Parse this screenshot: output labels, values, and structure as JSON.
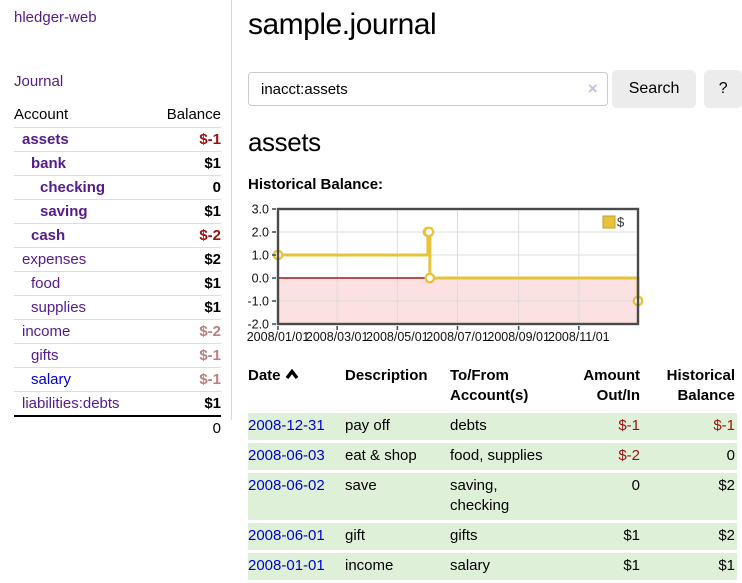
{
  "colors": {
    "link_purple": "#551a8b",
    "link_blue": "#0000cc",
    "negative_red": "#991111",
    "negative_muted": "#c07f7f",
    "row_green": "#dff0d8",
    "chart_gold": "#e7c33c",
    "chart_gold_border": "#bfa02a",
    "chart_negative_fill": "#fbe1e1",
    "chart_zero_line": "#a01c1c",
    "chart_border": "#4a4a4a",
    "grid_line": "#dcdcdc"
  },
  "sidebar": {
    "app_title": "hledger-web",
    "journal_link": "Journal",
    "accounts_table": {
      "headers": {
        "account": "Account",
        "balance": "Balance"
      },
      "rows": [
        {
          "account": "assets",
          "balance": "$-1",
          "depth": 1,
          "bold": true,
          "negative": "strong",
          "link_color": "purple"
        },
        {
          "account": "bank",
          "balance": "$1",
          "depth": 2,
          "bold": true,
          "negative": "none",
          "link_color": "purple"
        },
        {
          "account": "checking",
          "balance": "0",
          "depth": 3,
          "bold": true,
          "negative": "none",
          "link_color": "purple"
        },
        {
          "account": "saving",
          "balance": "$1",
          "depth": 3,
          "bold": true,
          "negative": "none",
          "link_color": "purple"
        },
        {
          "account": "cash",
          "balance": "$-2",
          "depth": 2,
          "bold": true,
          "negative": "strong",
          "link_color": "purple"
        },
        {
          "account": "expenses",
          "balance": "$2",
          "depth": 1,
          "bold": false,
          "negative": "none",
          "link_color": "purple"
        },
        {
          "account": "food",
          "balance": "$1",
          "depth": 2,
          "bold": false,
          "negative": "none",
          "link_color": "purple"
        },
        {
          "account": "supplies",
          "balance": "$1",
          "depth": 2,
          "bold": false,
          "negative": "none",
          "link_color": "purple"
        },
        {
          "account": "income",
          "balance": "$-2",
          "depth": 1,
          "bold": false,
          "negative": "muted",
          "link_color": "purple"
        },
        {
          "account": "gifts",
          "balance": "$-1",
          "depth": 2,
          "bold": false,
          "negative": "muted",
          "link_color": "purple"
        },
        {
          "account": "salary",
          "balance": "$-1",
          "depth": 2,
          "bold": false,
          "negative": "muted",
          "link_color": "blue"
        },
        {
          "account": "liabilities:debts",
          "balance": "$1",
          "depth": 1,
          "bold": false,
          "negative": "none",
          "link_color": "purple"
        }
      ],
      "total": "0"
    }
  },
  "main": {
    "title": "sample.journal",
    "search": {
      "value": "inacct:assets",
      "clear_icon": "×",
      "search_button": "Search",
      "help_button": "?"
    },
    "account_heading": "assets",
    "section_heading": "Historical Balance:",
    "transactions": {
      "headers": [
        "Date",
        "Description",
        "To/From Account(s)",
        "Amount Out/In",
        "Historical Balance"
      ],
      "sort": {
        "column": "Date",
        "direction": "ascending"
      },
      "rows": [
        {
          "date": "2008-12-31",
          "description": "pay off",
          "accounts": "debts",
          "amount": "$-1",
          "balance": "$-1",
          "amount_negative": true,
          "balance_negative": true
        },
        {
          "date": "2008-06-03",
          "description": "eat & shop",
          "accounts": "food, supplies",
          "amount": "$-2",
          "balance": "0",
          "amount_negative": true,
          "balance_negative": false
        },
        {
          "date": "2008-06-02",
          "description": "save",
          "accounts": "saving, checking",
          "amount": "0",
          "balance": "$2",
          "amount_negative": false,
          "balance_negative": false
        },
        {
          "date": "2008-06-01",
          "description": "gift",
          "accounts": "gifts",
          "amount": "$1",
          "balance": "$2",
          "amount_negative": false,
          "balance_negative": false
        },
        {
          "date": "2008-01-01",
          "description": "income",
          "accounts": "salary",
          "amount": "$1",
          "balance": "$1",
          "amount_negative": false,
          "balance_negative": false
        }
      ]
    }
  },
  "chart_data": {
    "type": "line",
    "title": "Historical Balance:",
    "series": [
      {
        "name": "$",
        "x": [
          "2008-01-01",
          "2008-06-01",
          "2008-06-02",
          "2008-06-03",
          "2008-12-31"
        ],
        "values": [
          1,
          2,
          2,
          0,
          -1
        ],
        "step": true,
        "markers": true
      }
    ],
    "x_range": [
      "2008-01-01",
      "2008-12-31"
    ],
    "ylim": [
      -2,
      3
    ],
    "yticks": [
      3.0,
      2.0,
      1.0,
      0.0,
      -1.0,
      -2.0
    ],
    "xticks": [
      "2008/01/01",
      "2008/03/01",
      "2008/05/01",
      "2008/07/01",
      "2008/09/01",
      "2008/11/01"
    ],
    "legend": {
      "position": "top-right",
      "entries": [
        "$"
      ]
    },
    "grid": true,
    "negative_region_shaded": true
  }
}
